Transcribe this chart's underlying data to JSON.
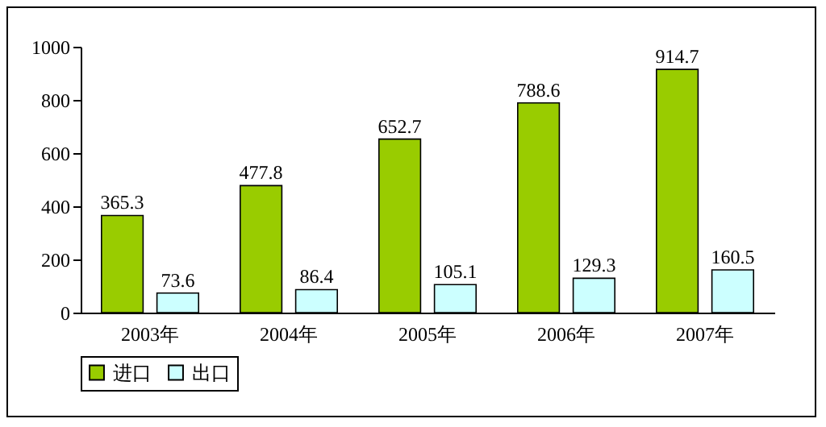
{
  "chart_data": {
    "type": "bar",
    "categories": [
      "2003年",
      "2004年",
      "2005年",
      "2006年",
      "2007年"
    ],
    "series": [
      {
        "name": "进口",
        "color": "#99cc00",
        "values": [
          365.3,
          477.8,
          652.7,
          788.6,
          914.7
        ]
      },
      {
        "name": "出口",
        "color": "#ccffff",
        "values": [
          73.6,
          86.4,
          105.1,
          129.3,
          160.5
        ]
      }
    ],
    "ylim": [
      0,
      1000
    ],
    "yticks": [
      0,
      200,
      400,
      600,
      800,
      1000
    ],
    "grid": false,
    "legend": "bottom",
    "data_labels": true
  }
}
